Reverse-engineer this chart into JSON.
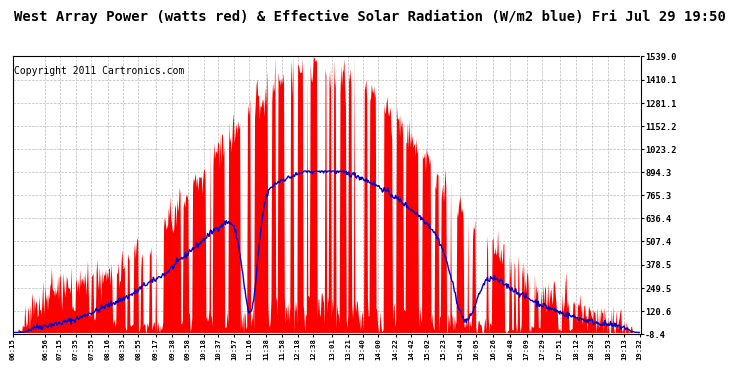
{
  "title": "West Array Power (watts red) & Effective Solar Radiation (W/m2 blue) Fri Jul 29 19:50",
  "copyright": "Copyright 2011 Cartronics.com",
  "yticks_right": [
    1539.0,
    1410.1,
    1281.1,
    1152.2,
    1023.2,
    894.3,
    765.3,
    636.4,
    507.4,
    378.5,
    249.5,
    120.6,
    -8.4
  ],
  "ymin": -8.4,
  "ymax": 1539.0,
  "bg_color": "#ffffff",
  "grid_color": "#aaaaaa",
  "red_color": "#ff0000",
  "blue_color": "#0000cc",
  "xtick_labels": [
    "06:15",
    "06:56",
    "07:15",
    "07:35",
    "07:55",
    "08:16",
    "08:35",
    "08:55",
    "09:17",
    "09:38",
    "09:58",
    "10:18",
    "10:37",
    "10:57",
    "11:16",
    "11:38",
    "11:58",
    "12:18",
    "12:38",
    "13:01",
    "13:21",
    "13:40",
    "14:00",
    "14:22",
    "14:42",
    "15:02",
    "15:23",
    "15:44",
    "16:05",
    "16:26",
    "16:48",
    "17:09",
    "17:29",
    "17:51",
    "18:12",
    "18:32",
    "18:53",
    "19:13",
    "19:32"
  ],
  "title_fontsize": 10,
  "copyright_fontsize": 7
}
